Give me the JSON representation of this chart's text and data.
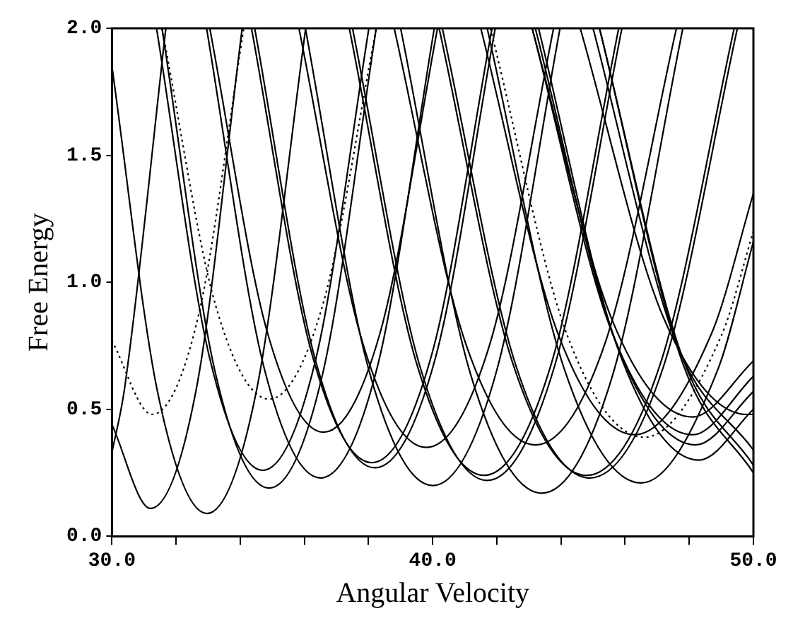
{
  "chart_data": {
    "type": "line",
    "xlabel": "Angular Velocity",
    "ylabel": "Free Energy",
    "xlim": [
      30,
      50
    ],
    "ylim": [
      0,
      2
    ],
    "xticks": [
      {
        "value": 30,
        "label": "30.0"
      },
      {
        "value": 32,
        "label": null
      },
      {
        "value": 34,
        "label": null
      },
      {
        "value": 36,
        "label": null
      },
      {
        "value": 38,
        "label": null
      },
      {
        "value": 40,
        "label": "40.0"
      },
      {
        "value": 42,
        "label": null
      },
      {
        "value": 44,
        "label": null
      },
      {
        "value": 46,
        "label": null
      },
      {
        "value": 48,
        "label": null
      },
      {
        "value": 50,
        "label": "50.0"
      }
    ],
    "yticks": [
      {
        "value": 0,
        "label": "0.0"
      },
      {
        "value": 0.5,
        "label": "0.5"
      },
      {
        "value": 1,
        "label": "1.0"
      },
      {
        "value": 1.5,
        "label": "1.5"
      },
      {
        "value": 2,
        "label": "2.0"
      }
    ],
    "grid": false,
    "legend": false,
    "marker": "none",
    "line_style": "solid",
    "series": [
      {
        "color": "#000000",
        "x": [
          30,
          30.39,
          31.68
        ],
        "values": [
          0.33,
          0.58,
          2
        ]
      },
      {
        "color": "#000000",
        "x": [
          30,
          31.2,
          32.63,
          34.06
        ],
        "values": [
          0.44,
          0.11,
          0.58,
          2
        ]
      },
      {
        "color": "#000000",
        "line_style": "dotted",
        "x": [
          30,
          31.25,
          32.68,
          34.11
        ],
        "values": [
          0.77,
          0.48,
          0.86,
          2
        ]
      },
      {
        "color": "#000000",
        "x": [
          30,
          31.42,
          32.96,
          34.5,
          36.04
        ],
        "values": [
          1.85,
          0.57,
          0.09,
          0.57,
          2
        ]
      },
      {
        "color": "#000000",
        "x": [
          31.39,
          33.05,
          34.7,
          36.36,
          38.01
        ],
        "values": [
          2,
          0.7,
          0.26,
          0.7,
          2
        ]
      },
      {
        "color": "#000000",
        "x": [
          31.56,
          33.23,
          34.9,
          36.57,
          38.24
        ],
        "values": [
          2,
          0.64,
          0.19,
          0.64,
          2
        ]
      },
      {
        "color": "#000000",
        "line_style": "dotted",
        "x": [
          31.56,
          33.23,
          34.9,
          36.57,
          38.24
        ],
        "values": [
          2,
          0.91,
          0.54,
          0.91,
          2
        ]
      },
      {
        "color": "#000000",
        "x": [
          32.95,
          34.73,
          36.5,
          38.28,
          40.05
        ],
        "values": [
          2,
          0.67,
          0.23,
          0.67,
          2
        ]
      },
      {
        "color": "#000000",
        "x": [
          33.05,
          34.83,
          36.6,
          38.38,
          40.15
        ],
        "values": [
          2,
          0.81,
          0.41,
          0.81,
          2
        ]
      },
      {
        "color": "#000000",
        "x": [
          34.35,
          36.23,
          38.1,
          39.98,
          41.85
        ],
        "values": [
          2,
          0.72,
          0.29,
          0.72,
          2
        ]
      },
      {
        "color": "#000000",
        "x": [
          34.45,
          36.33,
          38.2,
          40.08,
          41.95
        ],
        "values": [
          2,
          0.7,
          0.27,
          0.7,
          2
        ]
      },
      {
        "color": "#000000",
        "x": [
          35.83,
          37.82,
          39.8,
          41.79,
          43.77
        ],
        "values": [
          2,
          0.76,
          0.35,
          0.76,
          2
        ]
      },
      {
        "color": "#000000",
        "x": [
          36.03,
          38.02,
          40,
          41.99,
          43.97
        ],
        "values": [
          2,
          0.65,
          0.2,
          0.65,
          2
        ]
      },
      {
        "color": "#000000",
        "x": [
          37.4,
          39.5,
          41.6,
          43.7,
          45.8
        ],
        "values": [
          2,
          0.68,
          0.24,
          0.68,
          2
        ]
      },
      {
        "color": "#000000",
        "x": [
          37.5,
          39.6,
          41.7,
          43.8,
          45.9
        ],
        "values": [
          2,
          0.67,
          0.22,
          0.67,
          2
        ]
      },
      {
        "color": "#000000",
        "x": [
          38.8,
          41,
          43.2,
          45.4,
          47.6
        ],
        "values": [
          2,
          0.77,
          0.36,
          0.77,
          2
        ]
      },
      {
        "color": "#000000",
        "x": [
          39,
          41.2,
          43.4,
          45.6,
          47.8
        ],
        "values": [
          2,
          0.63,
          0.17,
          0.63,
          2
        ]
      },
      {
        "color": "#000000",
        "x": [
          40.2,
          42.5,
          44.8,
          47.1,
          49.4
        ],
        "values": [
          2,
          0.68,
          0.24,
          0.68,
          2
        ]
      },
      {
        "color": "#000000",
        "x": [
          40.3,
          42.6,
          44.9,
          47.2,
          49.5
        ],
        "values": [
          2,
          0.67,
          0.23,
          0.67,
          2
        ]
      },
      {
        "color": "#000000",
        "x": [
          41.5,
          43.9,
          46.3,
          48.7,
          50
        ],
        "values": [
          2,
          0.8,
          0.4,
          0.8,
          1.35
        ]
      },
      {
        "color": "#000000",
        "x": [
          41.7,
          44.1,
          46.5,
          48.9,
          50
        ],
        "values": [
          2,
          0.66,
          0.21,
          0.66,
          1.16
        ]
      },
      {
        "color": "#000000",
        "line_style": "dotted",
        "x": [
          41.8,
          44.2,
          46.6,
          49,
          50
        ],
        "values": [
          2,
          0.79,
          0.39,
          0.79,
          1.2
        ]
      },
      {
        "color": "#000000",
        "x": [
          43.1,
          45.6,
          48.1,
          50
        ],
        "values": [
          2,
          0.85,
          0.47,
          0.69
        ]
      },
      {
        "color": "#000000",
        "x": [
          43.1,
          45.6,
          48.1,
          50
        ],
        "values": [
          2,
          0.8,
          0.4,
          0.63
        ]
      },
      {
        "color": "#000000",
        "x": [
          43.2,
          45.7,
          48.2,
          50
        ],
        "values": [
          2,
          0.77,
          0.36,
          0.57
        ]
      },
      {
        "color": "#000000",
        "x": [
          43.3,
          45.8,
          48.3,
          50
        ],
        "values": [
          2,
          0.73,
          0.3,
          0.5
        ]
      },
      {
        "color": "#000000",
        "x": [
          44.6,
          47.2,
          49.8,
          50
        ],
        "values": [
          2,
          0.86,
          0.48,
          0.48
        ]
      },
      {
        "color": "#000000",
        "x": [
          45,
          47.6,
          50
        ],
        "values": [
          2,
          0.76,
          0.34
        ]
      },
      {
        "color": "#000000",
        "x": [
          45.2,
          47.8,
          50
        ],
        "values": [
          2,
          0.7,
          0.28
        ]
      },
      {
        "color": "#000000",
        "x": [
          45.2,
          47.8,
          50
        ],
        "values": [
          2,
          0.68,
          0.25
        ]
      }
    ]
  }
}
